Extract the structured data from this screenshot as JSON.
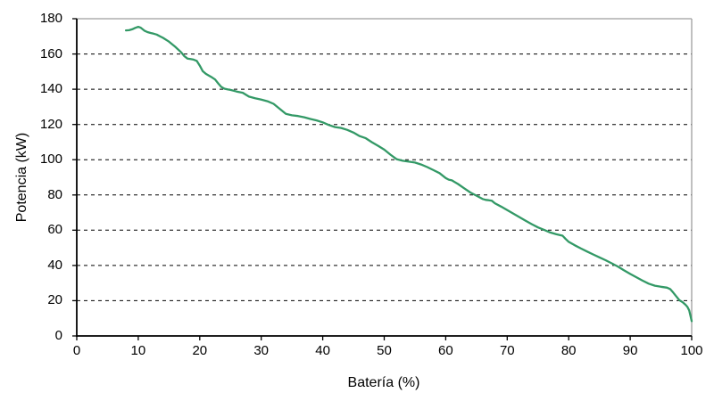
{
  "style": {
    "background": "#ffffff",
    "line_color": "#339966",
    "grid_color": "#000000",
    "border_color": "#9e9e9e",
    "axis_color": "#000000",
    "text_color": "#000000"
  },
  "chart_data": {
    "type": "line",
    "title": "",
    "xlabel": "Batería (%)",
    "ylabel": "Potencia (kW)",
    "xlim": [
      0,
      100
    ],
    "ylim": [
      0,
      180
    ],
    "x_ticks": [
      0,
      10,
      20,
      30,
      40,
      50,
      60,
      70,
      80,
      90,
      100
    ],
    "y_ticks": [
      0,
      20,
      40,
      60,
      80,
      100,
      120,
      140,
      160,
      180
    ],
    "grid": "horizontal-dashed",
    "legend": "none",
    "series": [
      {
        "name": "Potencia",
        "color": "#339966",
        "points": [
          [
            8,
            173.4
          ],
          [
            8.5,
            173.5
          ],
          [
            9,
            174
          ],
          [
            9.5,
            174.8
          ],
          [
            10,
            175.4
          ],
          [
            10.4,
            174.9
          ],
          [
            11,
            173.2
          ],
          [
            11.5,
            172.4
          ],
          [
            12,
            171.9
          ],
          [
            12.5,
            171.5
          ],
          [
            13,
            171
          ],
          [
            13.5,
            170.1
          ],
          [
            14,
            169.2
          ],
          [
            15,
            167
          ],
          [
            16,
            164.1
          ],
          [
            17,
            160.9
          ],
          [
            17.5,
            158.7
          ],
          [
            18,
            157.4
          ],
          [
            18.5,
            157.1
          ],
          [
            19,
            156.8
          ],
          [
            19.5,
            156.1
          ],
          [
            20,
            153.4
          ],
          [
            20.5,
            150.2
          ],
          [
            21,
            148.7
          ],
          [
            21.5,
            147.7
          ],
          [
            22,
            146.7
          ],
          [
            22.5,
            145.5
          ],
          [
            23,
            143.3
          ],
          [
            23.5,
            141.3
          ],
          [
            24,
            140.3
          ],
          [
            24.5,
            139.9
          ],
          [
            25,
            139.6
          ],
          [
            26,
            138.7
          ],
          [
            27,
            138
          ],
          [
            28,
            135.8
          ],
          [
            29,
            134.9
          ],
          [
            30,
            134.1
          ],
          [
            31,
            133.2
          ],
          [
            32,
            131.7
          ],
          [
            33,
            128.9
          ],
          [
            34,
            126
          ],
          [
            35,
            125.2
          ],
          [
            36,
            124.8
          ],
          [
            37,
            124.1
          ],
          [
            38,
            123.1
          ],
          [
            39,
            122.3
          ],
          [
            40,
            121.2
          ],
          [
            41,
            119.7
          ],
          [
            42,
            118.5
          ],
          [
            43,
            118
          ],
          [
            44,
            116.9
          ],
          [
            45,
            115.4
          ],
          [
            46,
            113.4
          ],
          [
            47,
            112.2
          ],
          [
            48,
            109.9
          ],
          [
            49,
            107.9
          ],
          [
            50,
            105.7
          ],
          [
            51,
            102.9
          ],
          [
            52,
            100.3
          ],
          [
            53,
            99.4
          ],
          [
            54,
            98.9
          ],
          [
            55,
            98.4
          ],
          [
            56,
            97.3
          ],
          [
            57,
            95.8
          ],
          [
            58,
            94.1
          ],
          [
            59,
            92.4
          ],
          [
            60,
            89.6
          ],
          [
            60.5,
            88.7
          ],
          [
            61,
            88.3
          ],
          [
            62,
            86.2
          ],
          [
            63,
            83.8
          ],
          [
            64,
            81.4
          ],
          [
            65,
            79.6
          ],
          [
            66,
            77.7
          ],
          [
            66.5,
            77.2
          ],
          [
            67,
            77
          ],
          [
            67.5,
            76.7
          ],
          [
            68,
            75.3
          ],
          [
            69,
            73.4
          ],
          [
            70,
            71.4
          ],
          [
            71,
            69.4
          ],
          [
            72,
            67.4
          ],
          [
            73,
            65.4
          ],
          [
            74,
            63.4
          ],
          [
            75,
            61.6
          ],
          [
            76,
            60.2
          ],
          [
            77,
            58.7
          ],
          [
            78,
            57.7
          ],
          [
            79,
            56.9
          ],
          [
            79.5,
            55
          ],
          [
            80,
            53.4
          ],
          [
            81,
            51.4
          ],
          [
            82,
            49.6
          ],
          [
            83,
            47.9
          ],
          [
            84,
            46.2
          ],
          [
            85,
            44.6
          ],
          [
            86,
            43
          ],
          [
            87,
            41.2
          ],
          [
            88,
            39.4
          ],
          [
            89,
            37.2
          ],
          [
            90,
            35.2
          ],
          [
            91,
            33.3
          ],
          [
            92,
            31.4
          ],
          [
            93,
            29.7
          ],
          [
            94,
            28.5
          ],
          [
            95,
            27.9
          ],
          [
            96,
            27.4
          ],
          [
            96.5,
            26.6
          ],
          [
            97,
            24.6
          ],
          [
            97.5,
            22.4
          ],
          [
            98,
            20.3
          ],
          [
            98.5,
            19.2
          ],
          [
            99,
            17.7
          ],
          [
            99.3,
            16.5
          ],
          [
            99.6,
            14.5
          ],
          [
            99.8,
            11.5
          ],
          [
            100,
            8.4
          ]
        ]
      }
    ]
  }
}
